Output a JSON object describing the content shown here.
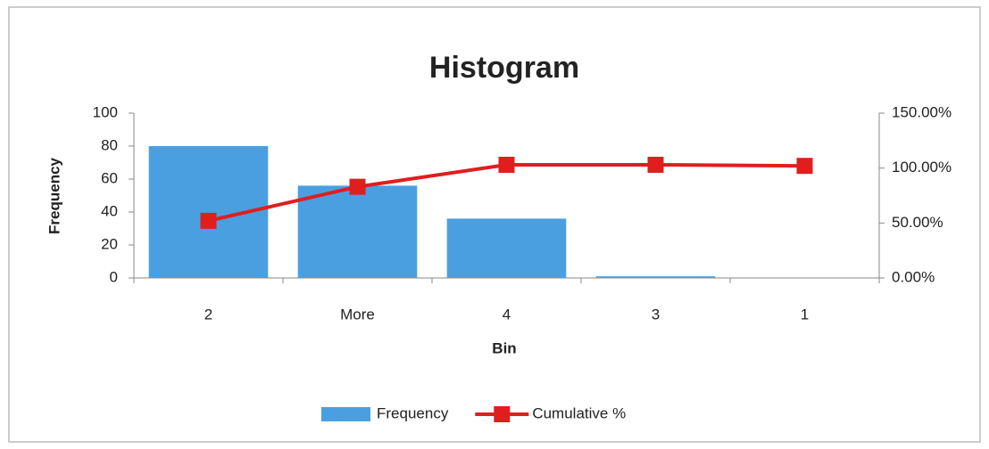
{
  "chart_data": {
    "type": "bar",
    "title": "Histogram",
    "x_label": "Bin",
    "y_label": "Frequency",
    "categories": [
      "2",
      "More",
      "4",
      "3",
      "1"
    ],
    "series": [
      {
        "name": "Frequency",
        "type": "bar",
        "color": "#4a9fe0",
        "values": [
          80,
          56,
          36,
          1,
          0
        ]
      },
      {
        "name": "Cumulative %",
        "type": "line",
        "axis": "y2",
        "color": "#e01e1e",
        "values": [
          52,
          83,
          103,
          103,
          102
        ]
      }
    ],
    "ylim": [
      0,
      100
    ],
    "yticks": [
      0,
      20,
      40,
      60,
      80,
      100
    ],
    "y2lim": [
      0,
      150
    ],
    "y2ticks": [
      {
        "value": 0,
        "label": "0.00%"
      },
      {
        "value": 50,
        "label": "50.00%"
      },
      {
        "value": 100,
        "label": "100.00%"
      },
      {
        "value": 150,
        "label": "150.00%"
      }
    ],
    "grid": false,
    "legend": "bottom"
  }
}
